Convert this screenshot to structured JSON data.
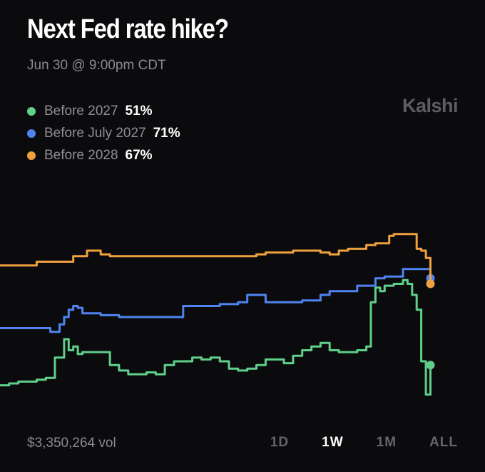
{
  "header": {
    "title": "Next Fed rate hike?",
    "subtitle": "Jun 30 @ 9:00pm CDT",
    "brand": "Kalshi"
  },
  "legend": [
    {
      "label": "Before 2027",
      "value": "51%",
      "color": "#5fcf8a"
    },
    {
      "label": "Before July 2027",
      "value": "71%",
      "color": "#4f84f0"
    },
    {
      "label": "Before 2028",
      "value": "67%",
      "color": "#f0a03f"
    }
  ],
  "footer": {
    "volume": "$3,350,264 vol",
    "ranges": [
      "1D",
      "1W",
      "1M",
      "ALL"
    ],
    "active_range": "1W"
  },
  "colors": {
    "background": "#0b0b0d",
    "before_2027": "#5fcf8a",
    "before_july_2027": "#4f84f0",
    "before_2028": "#f0a03f"
  },
  "chart_data": {
    "type": "line",
    "title": "Next Fed rate hike?",
    "xlabel": "",
    "ylabel": "",
    "axes_visible": false,
    "grid": false,
    "legend_position": "top-left",
    "x_domain": [
      0,
      100
    ],
    "ylim": [
      40,
      100
    ],
    "series": [
      {
        "name": "Before 2027",
        "color": "#5fcf8a",
        "end_marker": true,
        "x": [
          0,
          2,
          4,
          6,
          8,
          10,
          12,
          14,
          15,
          16,
          17,
          18,
          20,
          22,
          24,
          26,
          28,
          30,
          32,
          34,
          36,
          38,
          40,
          42,
          44,
          46,
          48,
          50,
          52,
          54,
          56,
          58,
          60,
          62,
          64,
          66,
          68,
          70,
          72,
          74,
          76,
          78,
          80,
          81,
          82,
          83,
          84,
          86,
          88,
          89,
          90,
          91,
          92,
          93,
          94
        ],
        "y": [
          45.5,
          46,
          46.5,
          46.5,
          47,
          47.5,
          53,
          58,
          55,
          56,
          54,
          54.5,
          54.5,
          54.5,
          51,
          49.5,
          48.5,
          48.5,
          49,
          48.5,
          51,
          52,
          52,
          53,
          52.5,
          53,
          52,
          50,
          49.5,
          50,
          51,
          52.5,
          52.5,
          51.5,
          53.5,
          55,
          56,
          57,
          55,
          54.5,
          54.5,
          55,
          56,
          68,
          72,
          71,
          72.5,
          73,
          74,
          73,
          70,
          66,
          52,
          43,
          51
        ]
      },
      {
        "name": "Before July 2027",
        "color": "#4f84f0",
        "end_marker": true,
        "x": [
          0,
          2,
          4,
          6,
          8,
          10,
          11,
          12,
          13,
          14,
          15,
          16,
          17,
          18,
          20,
          22,
          24,
          26,
          30,
          34,
          38,
          40,
          42,
          46,
          48,
          50,
          52,
          54,
          56,
          58,
          60,
          62,
          64,
          66,
          68,
          70,
          72,
          74,
          76,
          78,
          80,
          82,
          84,
          86,
          88,
          90,
          91,
          92,
          93,
          94
        ],
        "y": [
          61,
          61,
          61,
          61,
          61,
          61,
          60,
          60,
          62,
          64,
          66,
          67,
          66.5,
          65,
          65,
          64.5,
          64.5,
          64,
          64,
          64,
          64,
          67,
          67,
          67,
          67.5,
          67.5,
          68,
          70,
          70,
          68,
          68,
          68,
          68,
          68.5,
          68.5,
          70,
          71,
          71,
          71,
          72.5,
          72.5,
          74.5,
          75,
          75,
          77,
          77,
          77,
          77,
          77,
          74.5
        ]
      },
      {
        "name": "Before 2028",
        "color": "#f0a03f",
        "end_marker": true,
        "x": [
          0,
          2,
          4,
          6,
          8,
          10,
          12,
          14,
          16,
          18,
          19,
          20,
          21,
          22,
          24,
          26,
          28,
          30,
          32,
          34,
          36,
          38,
          40,
          42,
          44,
          46,
          48,
          50,
          52,
          54,
          56,
          58,
          60,
          62,
          64,
          66,
          68,
          70,
          72,
          74,
          76,
          78,
          80,
          82,
          84,
          85,
          86,
          88,
          90,
          91,
          92,
          93,
          94
        ],
        "y": [
          78,
          78,
          78,
          78,
          79,
          79,
          79,
          79,
          80.5,
          80.5,
          82,
          82,
          82,
          81,
          80.5,
          80.5,
          80.5,
          80.5,
          80.5,
          80.5,
          80.5,
          80.5,
          80.5,
          80.5,
          80.5,
          80.5,
          80.5,
          80.5,
          80.5,
          80.5,
          81,
          81.5,
          81.5,
          81.5,
          82,
          82,
          82,
          81.5,
          81,
          82,
          82.5,
          82.5,
          83.5,
          84,
          84,
          86,
          86.5,
          86.5,
          86.5,
          82.5,
          82,
          80,
          73
        ]
      }
    ]
  }
}
